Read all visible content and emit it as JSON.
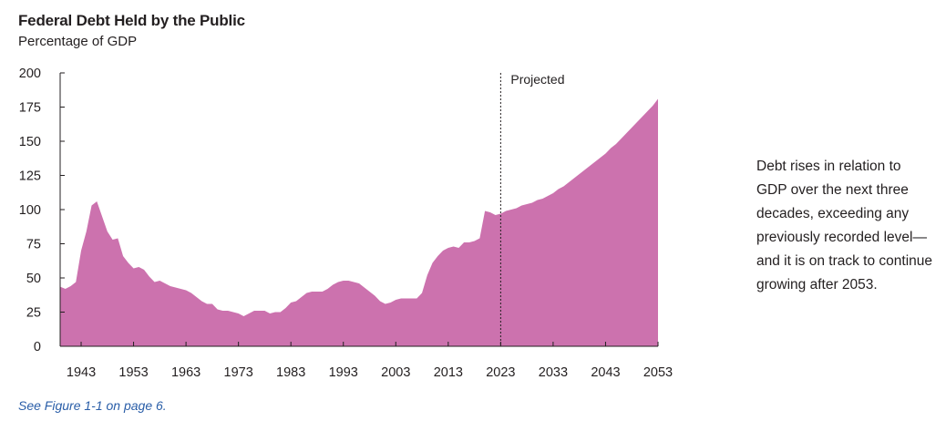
{
  "title": "Federal Debt Held by the Public",
  "subtitle": "Percentage of GDP",
  "annotation": "Debt rises in relation to\nGDP over the next three\ndecades, exceeding any\npreviously recorded level—\nand it is on track to continue\ngrowing after 2053.",
  "footnote": "See Figure 1-1 on page 6.",
  "colors": {
    "area": "#cc72ae",
    "axis": "#231f20",
    "projection_line": "#231f20",
    "footnote": "#2a5ea8"
  },
  "chart_data": {
    "type": "area",
    "title": "Federal Debt Held by the Public",
    "subtitle": "Percentage of GDP",
    "xlabel": "",
    "ylabel": "",
    "xlim": [
      1939,
      2053
    ],
    "ylim": [
      0,
      200
    ],
    "x_ticks": [
      "1943",
      "1953",
      "1963",
      "1973",
      "1983",
      "1993",
      "2003",
      "2013",
      "2023",
      "2033",
      "2043",
      "2053"
    ],
    "y_ticks": [
      "0",
      "25",
      "50",
      "75",
      "100",
      "125",
      "150",
      "175",
      "200"
    ],
    "grid": false,
    "projection": {
      "start": 2023,
      "label": "Projected"
    },
    "series": [
      {
        "x": [
          1939,
          1940,
          1941,
          1942,
          1943,
          1944,
          1945,
          1946,
          1947,
          1948,
          1949,
          1950,
          1951,
          1952,
          1953,
          1954,
          1955,
          1956,
          1957,
          1958,
          1959,
          1960,
          1961,
          1962,
          1963,
          1964,
          1965,
          1966,
          1967,
          1968,
          1969,
          1970,
          1971,
          1972,
          1973,
          1974,
          1975,
          1976,
          1977,
          1978,
          1979,
          1980,
          1981,
          1982,
          1983,
          1984,
          1985,
          1986,
          1987,
          1988,
          1989,
          1990,
          1991,
          1992,
          1993,
          1994,
          1995,
          1996,
          1997,
          1998,
          1999,
          2000,
          2001,
          2002,
          2003,
          2004,
          2005,
          2006,
          2007,
          2008,
          2009,
          2010,
          2011,
          2012,
          2013,
          2014,
          2015,
          2016,
          2017,
          2018,
          2019,
          2020,
          2021,
          2022,
          2023,
          2024,
          2025,
          2026,
          2027,
          2028,
          2029,
          2030,
          2031,
          2032,
          2033,
          2034,
          2035,
          2036,
          2037,
          2038,
          2039,
          2040,
          2041,
          2042,
          2043,
          2044,
          2045,
          2046,
          2047,
          2048,
          2049,
          2050,
          2051,
          2052,
          2053
        ],
        "values": [
          43.6,
          42,
          44,
          47,
          70,
          84,
          103,
          106,
          95,
          84,
          78,
          79,
          66,
          61,
          57,
          58,
          56,
          51,
          47,
          48,
          46,
          44,
          43,
          42,
          41,
          39,
          36,
          33,
          31,
          31,
          27,
          26,
          26,
          25,
          24,
          22,
          24,
          26,
          26,
          26,
          24,
          25,
          25,
          28,
          32,
          33,
          36,
          39,
          40,
          40,
          40,
          42,
          45,
          47,
          48,
          48,
          47,
          46,
          43,
          40,
          37,
          33,
          31,
          32,
          34,
          35,
          35,
          35,
          35,
          39,
          52,
          61,
          66,
          70,
          72,
          73,
          72,
          76,
          76,
          77,
          79,
          99,
          98,
          96,
          97,
          99,
          100,
          101,
          103,
          104,
          105,
          107,
          108,
          110,
          112,
          115,
          117,
          120,
          123,
          126,
          129,
          132,
          135,
          138,
          141,
          145,
          148,
          152,
          156,
          160,
          164,
          168,
          172,
          176,
          181
        ]
      }
    ]
  }
}
